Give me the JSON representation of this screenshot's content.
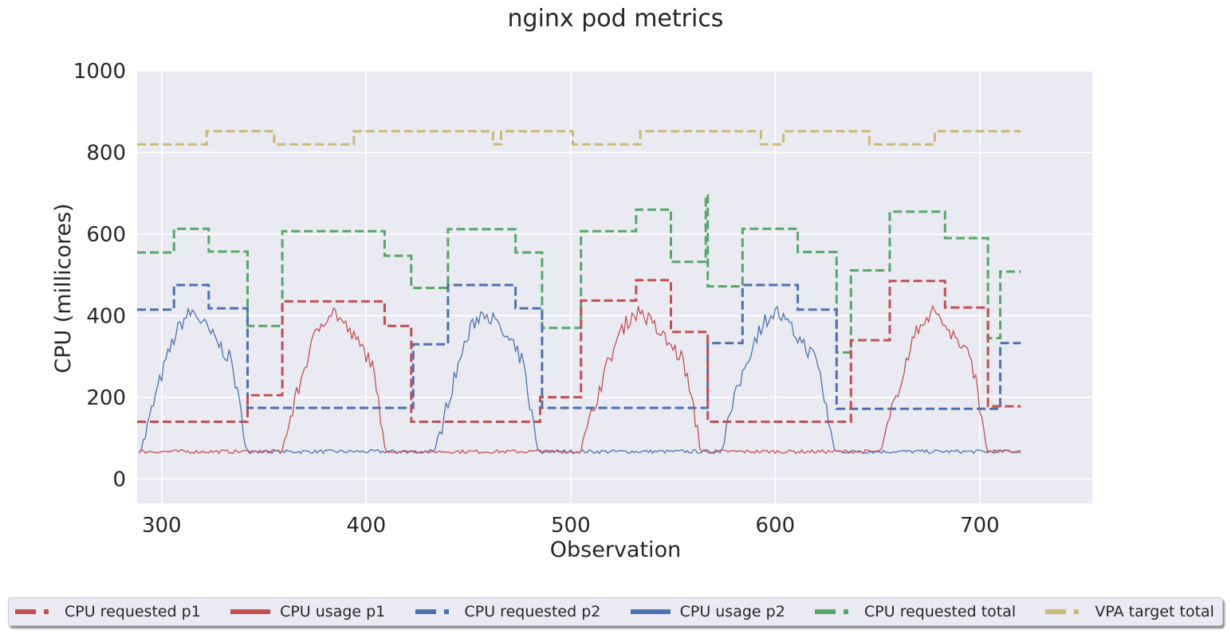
{
  "chart_data": {
    "type": "line",
    "title": "nginx pod metrics",
    "xlabel": "Observation",
    "ylabel": "CPU (millicores)",
    "xlim": [
      288,
      755
    ],
    "ylim": [
      -60,
      1000
    ],
    "xticks": [
      300,
      400,
      500,
      600,
      700
    ],
    "yticks": [
      0,
      200,
      400,
      600,
      800,
      1000
    ],
    "grid": true,
    "legend_position": "bottom",
    "colors": {
      "red": "#c44e52",
      "blue": "#4c72b0",
      "green": "#55a868",
      "gold": "#ccb974",
      "plot_bg": "#eaeaf2"
    },
    "series": [
      {
        "name": "CPU requested p1",
        "style": "dashed",
        "color": "#c44e52",
        "steps": [
          [
            288,
            140
          ],
          [
            342,
            205
          ],
          [
            359,
            435
          ],
          [
            409,
            375
          ],
          [
            422,
            140
          ],
          [
            485,
            200
          ],
          [
            505,
            437
          ],
          [
            532,
            487
          ],
          [
            549,
            360
          ],
          [
            567,
            140
          ],
          [
            637,
            340
          ],
          [
            656,
            485
          ],
          [
            683,
            420
          ],
          [
            704,
            178
          ],
          [
            720,
            178
          ]
        ]
      },
      {
        "name": "CPU usage p1",
        "style": "solid",
        "color": "#c44e52",
        "idle_level": 67,
        "pulses": [
          {
            "start": 359,
            "end": 410,
            "peak": 410
          },
          {
            "start": 505,
            "end": 564,
            "peak": 410
          },
          {
            "start": 652,
            "end": 704,
            "peak": 410
          }
        ]
      },
      {
        "name": "CPU requested p2",
        "style": "dashed",
        "color": "#4c72b0",
        "steps": [
          [
            288,
            415
          ],
          [
            306,
            475
          ],
          [
            323,
            418
          ],
          [
            342,
            174
          ],
          [
            423,
            330
          ],
          [
            440,
            475
          ],
          [
            473,
            418
          ],
          [
            486,
            174
          ],
          [
            567,
            333
          ],
          [
            584,
            475
          ],
          [
            611,
            415
          ],
          [
            630,
            172
          ],
          [
            710,
            333
          ],
          [
            720,
            333
          ]
        ]
      },
      {
        "name": "CPU usage p2",
        "style": "solid",
        "color": "#4c72b0",
        "idle_level": 67,
        "pulses": [
          {
            "start": 290,
            "end": 342,
            "peak": 408
          },
          {
            "start": 434,
            "end": 484,
            "peak": 410
          },
          {
            "start": 573,
            "end": 629,
            "peak": 408
          }
        ]
      },
      {
        "name": "CPU requested total",
        "style": "dashed",
        "color": "#55a868",
        "steps": [
          [
            288,
            555
          ],
          [
            306,
            613
          ],
          [
            323,
            557
          ],
          [
            342,
            375
          ],
          [
            359,
            607
          ],
          [
            409,
            547
          ],
          [
            422,
            468
          ],
          [
            440,
            612
          ],
          [
            473,
            555
          ],
          [
            486,
            370
          ],
          [
            505,
            607
          ],
          [
            532,
            660
          ],
          [
            549,
            532
          ],
          [
            566,
            695
          ],
          [
            567,
            472
          ],
          [
            584,
            613
          ],
          [
            611,
            556
          ],
          [
            630,
            310
          ],
          [
            637,
            511
          ],
          [
            656,
            655
          ],
          [
            683,
            590
          ],
          [
            704,
            345
          ],
          [
            710,
            508
          ],
          [
            720,
            508
          ]
        ]
      },
      {
        "name": "VPA target total",
        "style": "dashed",
        "color": "#ccb974",
        "steps": [
          [
            288,
            820
          ],
          [
            322,
            852
          ],
          [
            355,
            820
          ],
          [
            394,
            852
          ],
          [
            462,
            820
          ],
          [
            466,
            852
          ],
          [
            501,
            820
          ],
          [
            534,
            852
          ],
          [
            593,
            820
          ],
          [
            604,
            852
          ],
          [
            630,
            852
          ],
          [
            646,
            820
          ],
          [
            678,
            852
          ],
          [
            720,
            852
          ]
        ]
      }
    ]
  }
}
